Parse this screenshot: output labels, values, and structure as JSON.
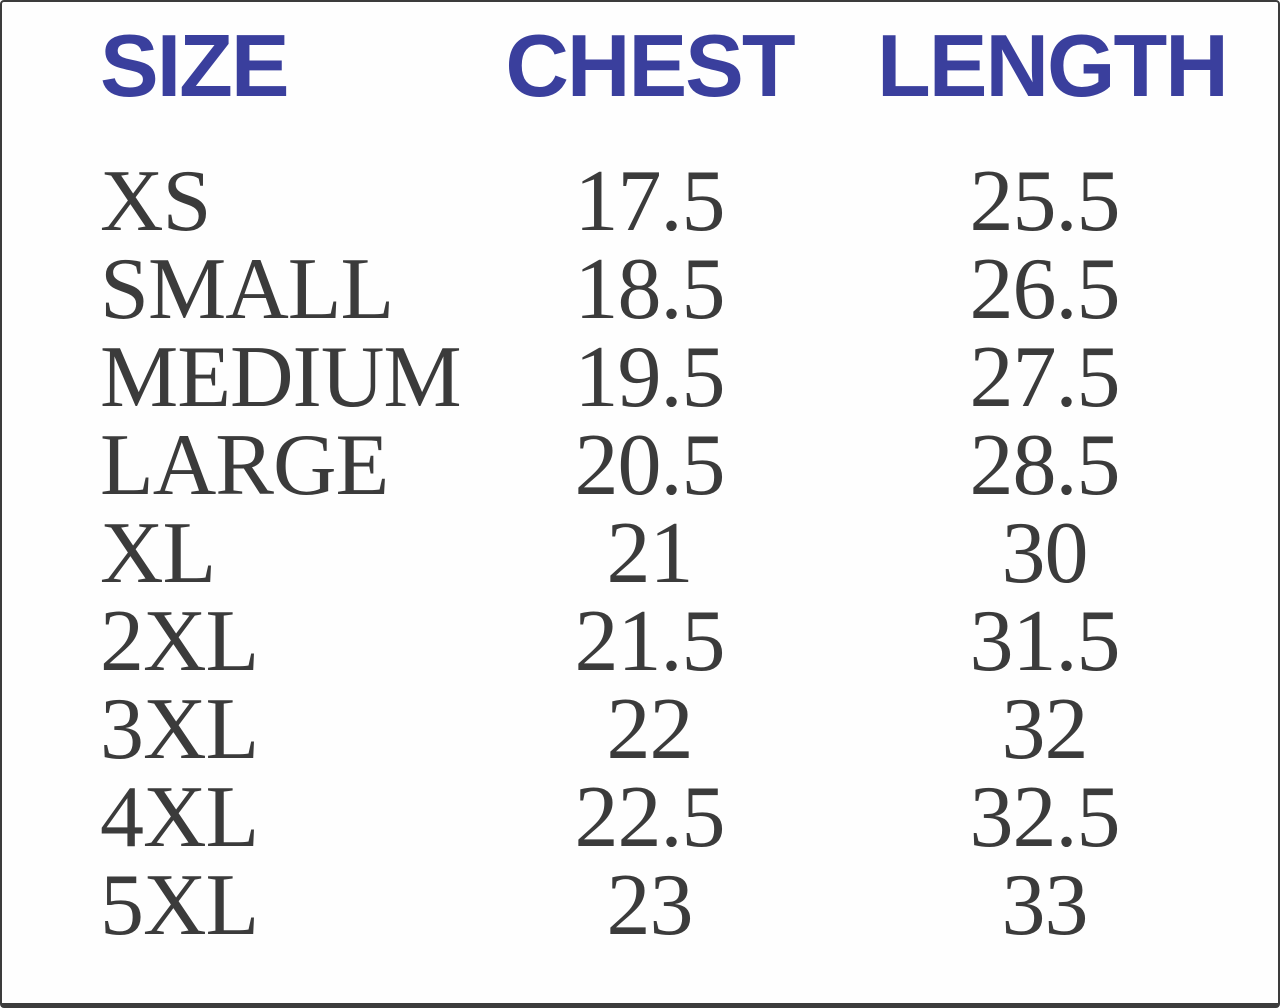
{
  "chart_data": {
    "type": "table",
    "columns": [
      "SIZE",
      "CHEST",
      "LENGTH"
    ],
    "rows": [
      {
        "size": "XS",
        "chest": "17.5",
        "length": "25.5"
      },
      {
        "size": "SMALL",
        "chest": "18.5",
        "length": "26.5"
      },
      {
        "size": "MEDIUM",
        "chest": "19.5",
        "length": "27.5"
      },
      {
        "size": "LARGE",
        "chest": "20.5",
        "length": "28.5"
      },
      {
        "size": "XL",
        "chest": "21",
        "length": "30"
      },
      {
        "size": "2XL",
        "chest": "21.5",
        "length": "31.5"
      },
      {
        "size": "3XL",
        "chest": "22",
        "length": "32"
      },
      {
        "size": "4XL",
        "chest": "22.5",
        "length": "32.5"
      },
      {
        "size": "5XL",
        "chest": "23",
        "length": "33"
      }
    ]
  },
  "colors": {
    "header_text": "#3a3f9d",
    "body_text": "#3b3b3b",
    "border": "#3c3c3c",
    "background": "#fefefe"
  }
}
